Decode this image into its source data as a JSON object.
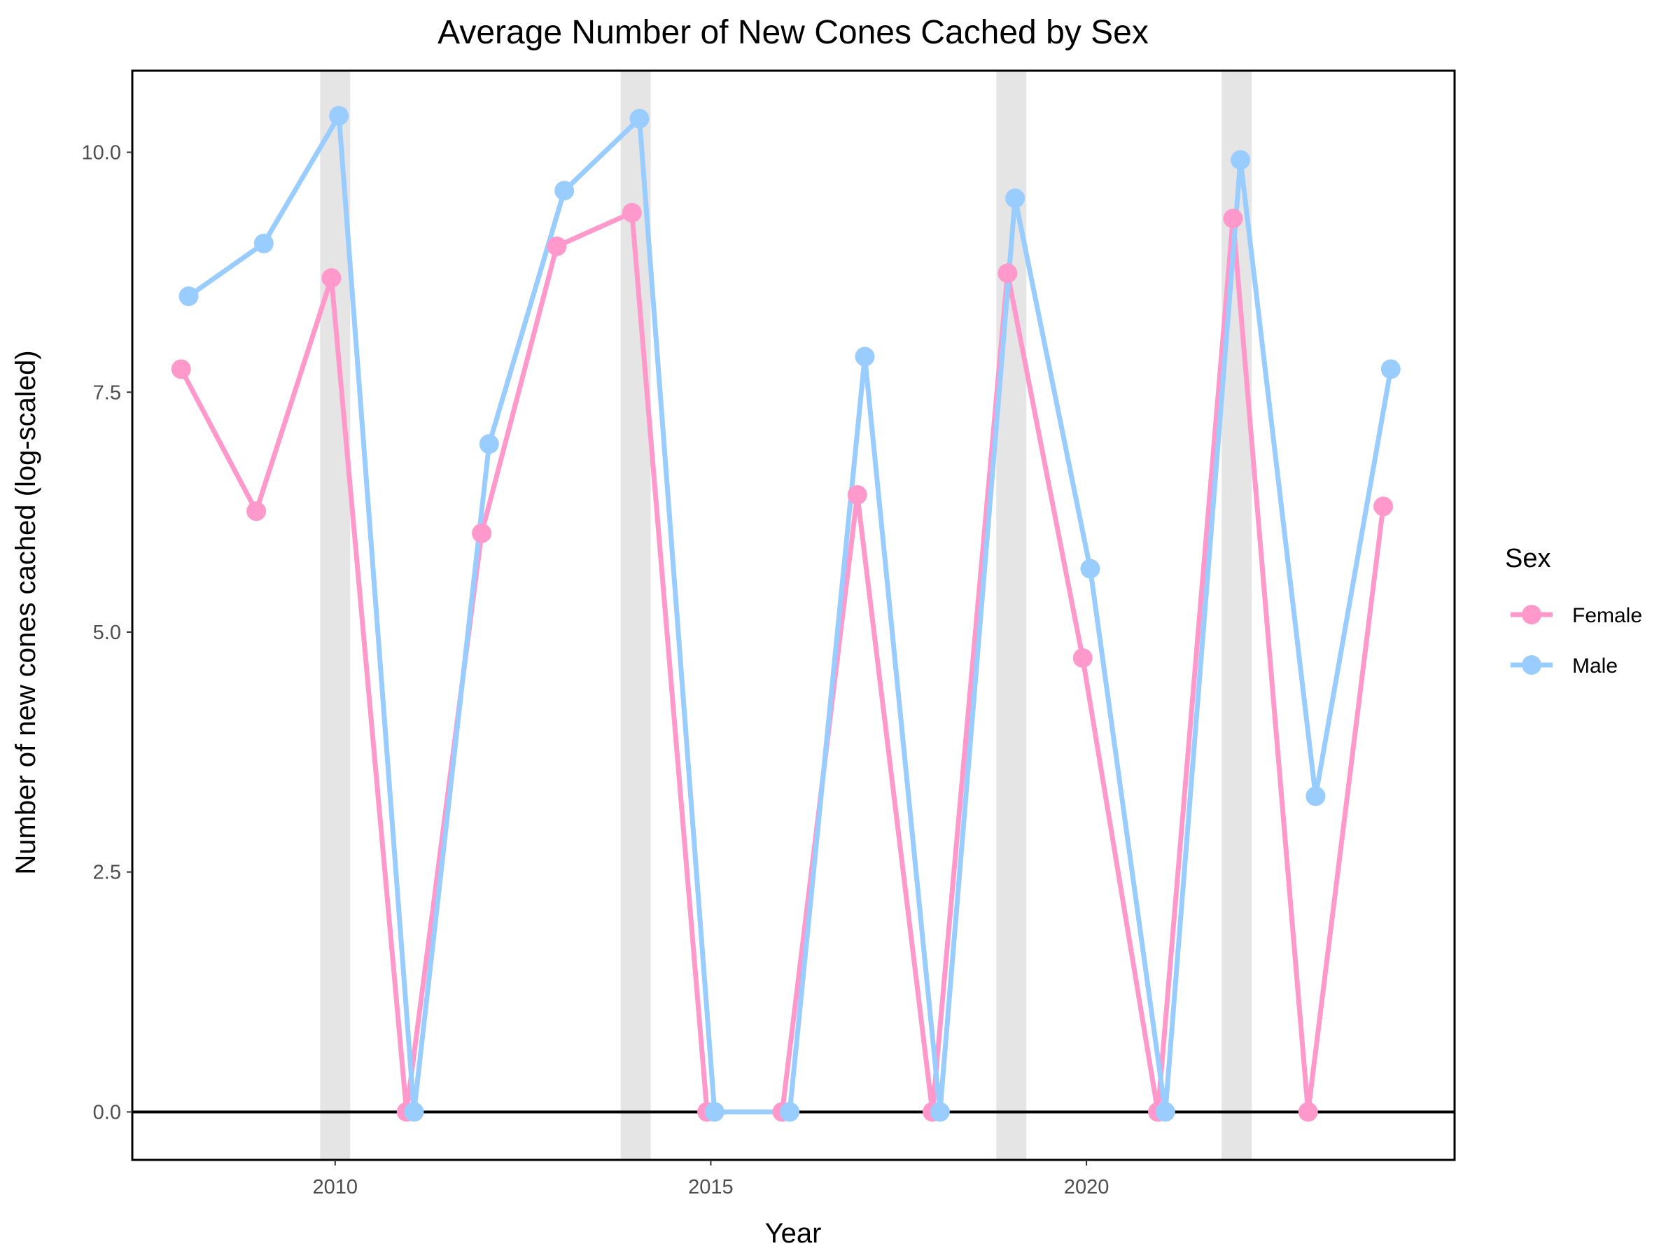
{
  "chart_data": {
    "type": "line",
    "title": "Average Number of New Cones Cached by Sex",
    "xlabel": "Year",
    "ylabel": "Number of new cones cached (log-scaled)",
    "xlim": [
      2007.3,
      2024.9
    ],
    "ylim": [
      -0.5,
      10.85
    ],
    "x_ticks": [
      2010,
      2015,
      2020
    ],
    "y_ticks": [
      0.0,
      2.5,
      5.0,
      7.5,
      10.0
    ],
    "x_tick_labels": [
      "2010",
      "2015",
      "2020"
    ],
    "y_tick_labels": [
      "0.0",
      "2.5",
      "5.0",
      "7.5",
      "10.0"
    ],
    "highlighted_years": [
      2010,
      2014,
      2019,
      2022
    ],
    "highlight_color": "#e5e5e5",
    "reference_line_y": 0,
    "grid": false,
    "legend": {
      "title": "Sex",
      "position": "right"
    },
    "series": [
      {
        "name": "Female",
        "color": "#ff99cc",
        "x": [
          2008,
          2009,
          2010,
          2011,
          2012,
          2013,
          2014,
          2015,
          2016,
          2017,
          2018,
          2019,
          2020,
          2021,
          2022,
          2023,
          2024
        ],
        "y": [
          7.74,
          6.26,
          8.69,
          0.0,
          6.03,
          9.02,
          9.37,
          0.0,
          0.0,
          6.43,
          0.0,
          8.74,
          4.73,
          0.0,
          9.31,
          0.0,
          6.31
        ]
      },
      {
        "name": "Male",
        "color": "#99ccff",
        "x": [
          2008,
          2009,
          2010,
          2011,
          2012,
          2013,
          2014,
          2015,
          2016,
          2017,
          2018,
          2019,
          2020,
          2021,
          2022,
          2023,
          2024
        ],
        "y": [
          8.5,
          9.05,
          10.38,
          0.0,
          6.96,
          9.6,
          10.35,
          0.0,
          0.0,
          7.87,
          0.0,
          9.52,
          5.66,
          0.0,
          9.92,
          3.29,
          7.74
        ]
      }
    ]
  }
}
